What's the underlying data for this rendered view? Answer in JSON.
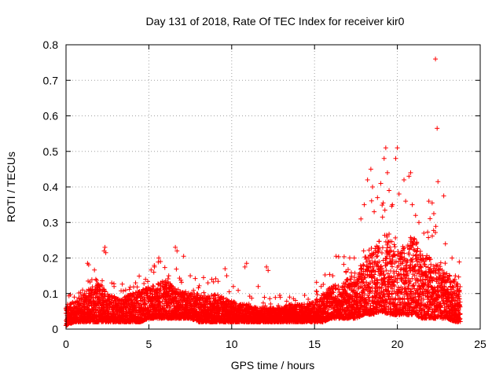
{
  "chart_data": {
    "type": "scatter",
    "title": "Day 131 of 2018, Rate Of TEC Index for receiver kir0",
    "xlabel": "GPS time / hours",
    "ylabel": "ROTI / TECUs",
    "xlim": [
      0,
      25
    ],
    "ylim": [
      0,
      0.8
    ],
    "x_ticks": [
      0,
      5,
      10,
      15,
      20,
      25
    ],
    "y_ticks": [
      0,
      0.1,
      0.2,
      0.3,
      0.4,
      0.5,
      0.6,
      0.7,
      0.8
    ],
    "x_tick_labels": [
      "0",
      "5",
      "10",
      "15",
      "20",
      "25"
    ],
    "y_tick_labels": [
      "0",
      "0.1",
      "0.2",
      "0.3",
      "0.4",
      "0.5",
      "0.6",
      "0.7",
      "0.8"
    ],
    "grid": true,
    "marker": "+",
    "marker_color": "#ff0000",
    "series": [
      {
        "name": "ROTI",
        "envelope": {
          "hours": [
            0.0,
            0.5,
            1.0,
            1.5,
            2.0,
            2.5,
            3.0,
            3.5,
            4.0,
            4.5,
            5.0,
            5.5,
            6.0,
            6.5,
            7.0,
            7.5,
            8.0,
            8.5,
            9.0,
            9.5,
            10.0,
            10.5,
            11.0,
            11.5,
            12.0,
            12.5,
            13.0,
            13.5,
            14.0,
            14.5,
            15.0,
            15.5,
            16.0,
            16.5,
            17.0,
            17.5,
            18.0,
            18.5,
            19.0,
            19.5,
            20.0,
            20.5,
            21.0,
            21.5,
            22.0,
            22.5,
            23.0,
            23.5,
            23.8
          ],
          "typical_max": [
            0.06,
            0.08,
            0.1,
            0.12,
            0.13,
            0.1,
            0.09,
            0.09,
            0.1,
            0.11,
            0.12,
            0.13,
            0.14,
            0.12,
            0.11,
            0.1,
            0.1,
            0.09,
            0.1,
            0.09,
            0.08,
            0.07,
            0.07,
            0.06,
            0.06,
            0.06,
            0.06,
            0.07,
            0.07,
            0.07,
            0.08,
            0.1,
            0.12,
            0.13,
            0.14,
            0.16,
            0.2,
            0.24,
            0.25,
            0.28,
            0.22,
            0.24,
            0.26,
            0.22,
            0.2,
            0.18,
            0.16,
            0.14,
            0.12
          ],
          "floor": [
            0.01,
            0.02,
            0.02,
            0.02,
            0.02,
            0.02,
            0.02,
            0.02,
            0.02,
            0.02,
            0.03,
            0.03,
            0.03,
            0.03,
            0.03,
            0.03,
            0.02,
            0.02,
            0.02,
            0.02,
            0.02,
            0.02,
            0.02,
            0.02,
            0.02,
            0.02,
            0.02,
            0.02,
            0.02,
            0.02,
            0.02,
            0.02,
            0.03,
            0.03,
            0.03,
            0.03,
            0.04,
            0.04,
            0.05,
            0.04,
            0.04,
            0.04,
            0.04,
            0.03,
            0.03,
            0.03,
            0.03,
            0.02,
            0.02
          ]
        },
        "outliers": [
          {
            "x": 0.1,
            "y": 0.07
          },
          {
            "x": 0.5,
            "y": 0.09
          },
          {
            "x": 1.0,
            "y": 0.11
          },
          {
            "x": 1.3,
            "y": 0.185
          },
          {
            "x": 1.8,
            "y": 0.14
          },
          {
            "x": 2.3,
            "y": 0.22
          },
          {
            "x": 2.35,
            "y": 0.23
          },
          {
            "x": 2.4,
            "y": 0.215
          },
          {
            "x": 2.9,
            "y": 0.12
          },
          {
            "x": 3.6,
            "y": 0.11
          },
          {
            "x": 4.2,
            "y": 0.13
          },
          {
            "x": 4.8,
            "y": 0.14
          },
          {
            "x": 5.3,
            "y": 0.16
          },
          {
            "x": 5.6,
            "y": 0.2
          },
          {
            "x": 5.7,
            "y": 0.19
          },
          {
            "x": 6.2,
            "y": 0.15
          },
          {
            "x": 6.6,
            "y": 0.23
          },
          {
            "x": 6.7,
            "y": 0.22
          },
          {
            "x": 7.1,
            "y": 0.205
          },
          {
            "x": 7.5,
            "y": 0.15
          },
          {
            "x": 8.3,
            "y": 0.145
          },
          {
            "x": 8.8,
            "y": 0.14
          },
          {
            "x": 9.6,
            "y": 0.17
          },
          {
            "x": 9.7,
            "y": 0.15
          },
          {
            "x": 10.1,
            "y": 0.12
          },
          {
            "x": 10.8,
            "y": 0.175
          },
          {
            "x": 10.9,
            "y": 0.185
          },
          {
            "x": 11.6,
            "y": 0.12
          },
          {
            "x": 12.1,
            "y": 0.175
          },
          {
            "x": 12.2,
            "y": 0.165
          },
          {
            "x": 12.9,
            "y": 0.095
          },
          {
            "x": 13.5,
            "y": 0.09
          },
          {
            "x": 14.4,
            "y": 0.095
          },
          {
            "x": 15.4,
            "y": 0.12
          },
          {
            "x": 16.1,
            "y": 0.15
          },
          {
            "x": 16.3,
            "y": 0.205
          },
          {
            "x": 16.9,
            "y": 0.16
          },
          {
            "x": 17.4,
            "y": 0.2
          },
          {
            "x": 17.8,
            "y": 0.31
          },
          {
            "x": 18.0,
            "y": 0.35
          },
          {
            "x": 18.2,
            "y": 0.42
          },
          {
            "x": 18.4,
            "y": 0.45
          },
          {
            "x": 18.5,
            "y": 0.4
          },
          {
            "x": 18.6,
            "y": 0.33
          },
          {
            "x": 18.8,
            "y": 0.37
          },
          {
            "x": 19.0,
            "y": 0.41
          },
          {
            "x": 19.2,
            "y": 0.48
          },
          {
            "x": 19.3,
            "y": 0.51
          },
          {
            "x": 19.4,
            "y": 0.44
          },
          {
            "x": 19.5,
            "y": 0.39
          },
          {
            "x": 19.7,
            "y": 0.35
          },
          {
            "x": 19.9,
            "y": 0.48
          },
          {
            "x": 20.0,
            "y": 0.51
          },
          {
            "x": 20.1,
            "y": 0.38
          },
          {
            "x": 20.4,
            "y": 0.42
          },
          {
            "x": 20.5,
            "y": 0.36
          },
          {
            "x": 20.7,
            "y": 0.43
          },
          {
            "x": 20.8,
            "y": 0.44
          },
          {
            "x": 20.9,
            "y": 0.35
          },
          {
            "x": 21.1,
            "y": 0.32
          },
          {
            "x": 21.3,
            "y": 0.3
          },
          {
            "x": 21.6,
            "y": 0.27
          },
          {
            "x": 21.9,
            "y": 0.36
          },
          {
            "x": 22.1,
            "y": 0.355
          },
          {
            "x": 22.2,
            "y": 0.325
          },
          {
            "x": 22.3,
            "y": 0.76
          },
          {
            "x": 22.4,
            "y": 0.565
          },
          {
            "x": 22.45,
            "y": 0.415
          },
          {
            "x": 22.8,
            "y": 0.375
          },
          {
            "x": 22.9,
            "y": 0.24
          },
          {
            "x": 23.3,
            "y": 0.2
          },
          {
            "x": 23.5,
            "y": 0.15
          }
        ]
      }
    ]
  }
}
